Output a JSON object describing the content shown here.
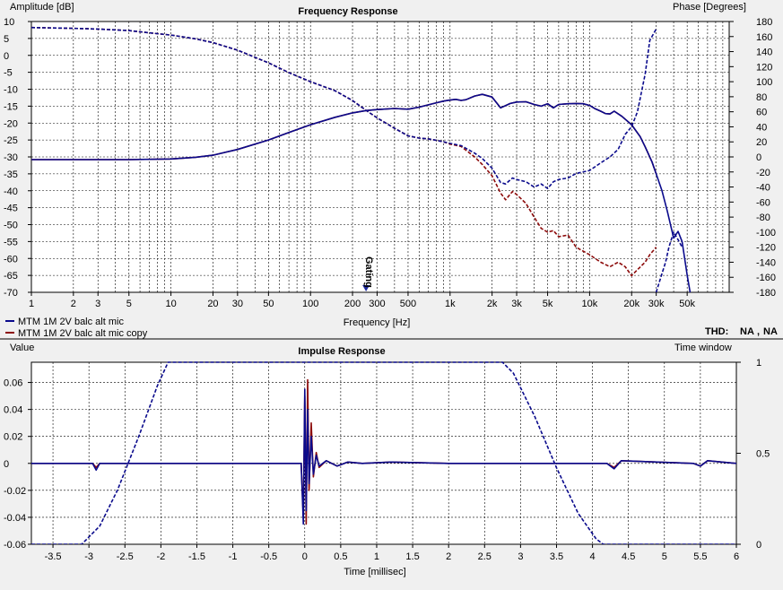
{
  "chart_data": [
    {
      "type": "line",
      "title": "Frequency Response",
      "ylabel": "Amplitude [dB]",
      "y2label": "Phase [Degrees]",
      "xlabel": "Frequency [Hz]",
      "xscale": "log",
      "xlim": [
        1,
        100000
      ],
      "ylim": [
        -70,
        10
      ],
      "y2lim": [
        -180,
        180
      ],
      "grid": true,
      "x_ticks": [
        "1",
        "2",
        "3",
        "5",
        "10",
        "20",
        "30",
        "50",
        "100",
        "200",
        "300",
        "500",
        "1k",
        "2k",
        "3k",
        "5k",
        "10k",
        "20k",
        "30k",
        "50k"
      ],
      "x_tick_values": [
        1,
        2,
        3,
        5,
        10,
        20,
        30,
        50,
        100,
        200,
        300,
        500,
        1000,
        2000,
        3000,
        5000,
        10000,
        20000,
        30000,
        50000
      ],
      "y_ticks": [
        "10",
        "5",
        "0",
        "-5",
        "-10",
        "-15",
        "-20",
        "-25",
        "-30",
        "-35",
        "-40",
        "-45",
        "-50",
        "-55",
        "-60",
        "-65",
        "-70"
      ],
      "y2_ticks": [
        "180",
        "160",
        "140",
        "120",
        "100",
        "80",
        "60",
        "40",
        "20",
        "0",
        "-20",
        "-40",
        "-60",
        "-80",
        "-100",
        "-120",
        "-140",
        "-160",
        "-180"
      ],
      "legend": [
        {
          "name": "MTM 1M 2V balc alt mic",
          "color": "#0a0a8c"
        },
        {
          "name": "MTM 1M 2V balc alt mic copy",
          "color": "#8c0a0a"
        }
      ],
      "legend_position": "bottom-left",
      "annotation": "Gating",
      "annotation_x": 250,
      "thd_label": "THD:",
      "thd_values": [
        {
          "text": "NA",
          "color": "#0a0a8c"
        },
        {
          "text": "NA",
          "color": "#8c0a0a"
        }
      ],
      "series": [
        {
          "name": "amplitude",
          "axis": "left",
          "style": "solid",
          "color": "#0a0a8c",
          "x": [
            1,
            2,
            5,
            10,
            15,
            20,
            30,
            50,
            70,
            100,
            150,
            200,
            250,
            300,
            400,
            500,
            600,
            700,
            800,
            900,
            1000,
            1100,
            1200,
            1300,
            1500,
            1700,
            2000,
            2300,
            2700,
            3000,
            3500,
            4000,
            4500,
            5000,
            5500,
            6000,
            7000,
            8000,
            9000,
            10000,
            11000,
            12000,
            13000,
            14000,
            15000,
            17000,
            20000,
            23000,
            25000,
            28000,
            30000,
            33000,
            36000,
            40000,
            43000,
            46000,
            50000,
            53000,
            56000
          ],
          "y": [
            -30.8,
            -30.8,
            -30.8,
            -30.6,
            -30.1,
            -29.5,
            -27.8,
            -25,
            -22.8,
            -20.5,
            -18.3,
            -17,
            -16.3,
            -16,
            -15.7,
            -15.9,
            -15.3,
            -14.6,
            -14,
            -13.5,
            -13.2,
            -13,
            -13.3,
            -13.1,
            -12,
            -11.5,
            -12.3,
            -15.5,
            -14.2,
            -13.8,
            -13.7,
            -14.5,
            -15,
            -14.3,
            -15.5,
            -14.5,
            -14.3,
            -14.2,
            -14.3,
            -14.8,
            -15.8,
            -16.5,
            -17.2,
            -17.3,
            -16.5,
            -18,
            -20.5,
            -24,
            -27,
            -31.5,
            -35,
            -40,
            -46,
            -54,
            -52,
            -55,
            -65,
            -71,
            -75
          ]
        },
        {
          "name": "amplitude copy",
          "axis": "left",
          "style": "solid",
          "color": "#8c0a0a",
          "x": [
            1,
            2,
            5,
            10,
            15,
            20,
            30,
            50,
            70,
            100,
            150,
            200,
            250,
            300,
            400,
            500,
            600,
            700,
            800,
            900,
            1000,
            1100,
            1200,
            1300,
            1500,
            1700,
            2000,
            2300,
            2700,
            3000,
            3500,
            4000,
            4500,
            5000,
            5500,
            6000,
            7000,
            8000,
            9000,
            10000,
            11000,
            12000,
            13000,
            14000,
            15000,
            17000,
            20000,
            23000,
            25000,
            28000,
            30000
          ],
          "y": [
            -30.8,
            -30.8,
            -30.8,
            -30.6,
            -30.1,
            -29.5,
            -27.8,
            -25,
            -22.8,
            -20.5,
            -18.3,
            -17,
            -16.3,
            -16,
            -15.7,
            -15.9,
            -15.3,
            -14.6,
            -14,
            -13.5,
            -13.2,
            -13,
            -13.3,
            -13.1,
            -12,
            -11.5,
            -12.3,
            -15.5,
            -14.2,
            -13.8,
            -13.7,
            -14.5,
            -15,
            -14.3,
            -15.5,
            -14.5,
            -14.3,
            -14.2,
            -14.3,
            -14.8,
            -15.8,
            -16.5,
            -17.2,
            -17.3,
            -16.5,
            -18,
            -20.5,
            -24,
            -27,
            -31.5,
            -35
          ]
        },
        {
          "name": "phase",
          "axis": "right",
          "style": "dashed",
          "color": "#0a0a8c",
          "x": [
            1,
            2,
            3,
            5,
            7,
            10,
            15,
            20,
            30,
            50,
            70,
            100,
            150,
            200,
            250,
            300,
            400,
            500,
            600,
            700,
            800,
            900,
            1000,
            1200,
            1500,
            1700,
            2000,
            2300,
            2500,
            2800,
            3000,
            3500,
            4000,
            4500,
            5000,
            5500,
            6000,
            7000,
            8000,
            10000,
            12000,
            14000,
            16000,
            18000,
            20000,
            22000,
            25000,
            27000,
            30000
          ],
          "y": [
            172,
            171,
            170,
            168,
            165,
            162,
            157,
            152,
            142,
            125,
            112,
            100,
            88,
            75,
            62,
            52,
            38,
            28,
            25,
            24,
            22,
            20,
            18,
            15,
            5,
            -2,
            -15,
            -34,
            -36,
            -28,
            -30,
            -33,
            -40,
            -36,
            -42,
            -33,
            -30,
            -28,
            -22,
            -18,
            -8,
            0,
            10,
            30,
            40,
            60,
            110,
            155,
            170
          ]
        },
        {
          "name": "phase copy",
          "axis": "right",
          "style": "dashed",
          "color": "#8c0a0a",
          "x": [
            1,
            2,
            3,
            5,
            7,
            10,
            15,
            20,
            30,
            50,
            70,
            100,
            150,
            200,
            250,
            300,
            400,
            500,
            600,
            700,
            800,
            900,
            1000,
            1200,
            1500,
            1700,
            2000,
            2300,
            2500,
            2800,
            3000,
            3500,
            4000,
            4500,
            5000,
            5500,
            6000,
            7000,
            8000,
            10000,
            12000,
            14000,
            16000,
            18000,
            20000,
            22000,
            25000,
            27000,
            30000
          ],
          "y": [
            172,
            171,
            170,
            168,
            165,
            162,
            157,
            152,
            142,
            125,
            112,
            100,
            88,
            75,
            62,
            52,
            38,
            28,
            25,
            24,
            22,
            20,
            17,
            14,
            0,
            -10,
            -25,
            -48,
            -57,
            -46,
            -50,
            -62,
            -80,
            -95,
            -100,
            -98,
            -106,
            -104,
            -120,
            -130,
            -140,
            -146,
            -140,
            -146,
            -158,
            -150,
            -140,
            -130,
            -120
          ]
        },
        {
          "name": "phase high-frequency tail",
          "axis": "right",
          "style": "dashed",
          "color": "#0a0a8c",
          "x": [
            30000,
            33000,
            35000,
            37000,
            40000,
            43000,
            46000
          ],
          "y": [
            -180,
            -155,
            -140,
            -120,
            -100,
            -110,
            -120
          ]
        }
      ]
    },
    {
      "type": "line",
      "title": "Impulse Response",
      "ylabel": "Value",
      "y2label": "Time window",
      "xlabel": "Time [millisec]",
      "xlim": [
        -3.8,
        6
      ],
      "ylim": [
        -0.06,
        0.075
      ],
      "y2lim": [
        0,
        1
      ],
      "grid": true,
      "x_ticks": [
        "-3.5",
        "-3",
        "-2.5",
        "-2",
        "-1.5",
        "-1",
        "-0.5",
        "0",
        "0.5",
        "1",
        "1.5",
        "2",
        "2.5",
        "3",
        "3.5",
        "4",
        "4.5",
        "5",
        "5.5",
        "6"
      ],
      "x_tick_values": [
        -3.5,
        -3,
        -2.5,
        -2,
        -1.5,
        -1,
        -0.5,
        0,
        0.5,
        1,
        1.5,
        2,
        2.5,
        3,
        3.5,
        4,
        4.5,
        5,
        5.5,
        6
      ],
      "y_ticks": [
        "0.06",
        "0.04",
        "0.02",
        "0",
        "-0.02",
        "-0.04",
        "-0.06"
      ],
      "y_tick_values": [
        0.06,
        0.04,
        0.02,
        0,
        -0.02,
        -0.04,
        -0.06
      ],
      "y2_ticks": [
        "1",
        "0.5",
        "0"
      ],
      "y2_tick_values": [
        1,
        0.5,
        0
      ],
      "series": [
        {
          "name": "window",
          "axis": "right",
          "style": "dashed",
          "color": "#0a0a8c",
          "x": [
            -3.8,
            -3.1,
            -2.85,
            -2.6,
            -2.3,
            -2.05,
            -1.9,
            2.75,
            2.9,
            3.2,
            3.5,
            3.8,
            4.05,
            4.15,
            6
          ],
          "y": [
            0,
            0,
            0.1,
            0.3,
            0.6,
            0.87,
            1,
            1,
            0.94,
            0.7,
            0.42,
            0.17,
            0.03,
            0,
            0
          ]
        },
        {
          "name": "impulse copy",
          "axis": "left",
          "style": "solid",
          "color": "#8c0a0a",
          "x": [
            -3.8,
            -2.95,
            -2.9,
            -2.85,
            -0.05,
            -0.02,
            0,
            0.02,
            0.04,
            0.06,
            0.09,
            0.12,
            0.16,
            0.2,
            0.3,
            0.45,
            0.6,
            0.8,
            1.2,
            2,
            3,
            4.2,
            4.3,
            4.4,
            5.4,
            5.5,
            5.6,
            6
          ],
          "y": [
            0,
            0,
            -0.003,
            0,
            0,
            -0.04,
            0.05,
            -0.045,
            0.062,
            -0.02,
            0.03,
            -0.01,
            0.008,
            -0.003,
            0.002,
            -0.002,
            0.001,
            0,
            0.001,
            0,
            0,
            0,
            -0.003,
            0.002,
            0,
            -0.002,
            0.002,
            0
          ]
        },
        {
          "name": "impulse",
          "axis": "left",
          "style": "solid",
          "color": "#0a0a8c",
          "x": [
            -3.8,
            -2.95,
            -2.9,
            -2.85,
            -0.05,
            -0.02,
            0,
            0.02,
            0.04,
            0.06,
            0.09,
            0.12,
            0.16,
            0.2,
            0.3,
            0.45,
            0.6,
            0.8,
            1.2,
            2,
            3,
            4.2,
            4.3,
            4.4,
            5.4,
            5.5,
            5.6,
            6
          ],
          "y": [
            0,
            0,
            -0.005,
            0,
            0,
            -0.045,
            0.055,
            -0.035,
            0.04,
            -0.015,
            0.02,
            -0.008,
            0.006,
            -0.002,
            0.002,
            -0.002,
            0.001,
            0,
            0.001,
            0,
            0,
            0,
            -0.004,
            0.002,
            0,
            -0.002,
            0.002,
            0
          ]
        }
      ]
    }
  ]
}
